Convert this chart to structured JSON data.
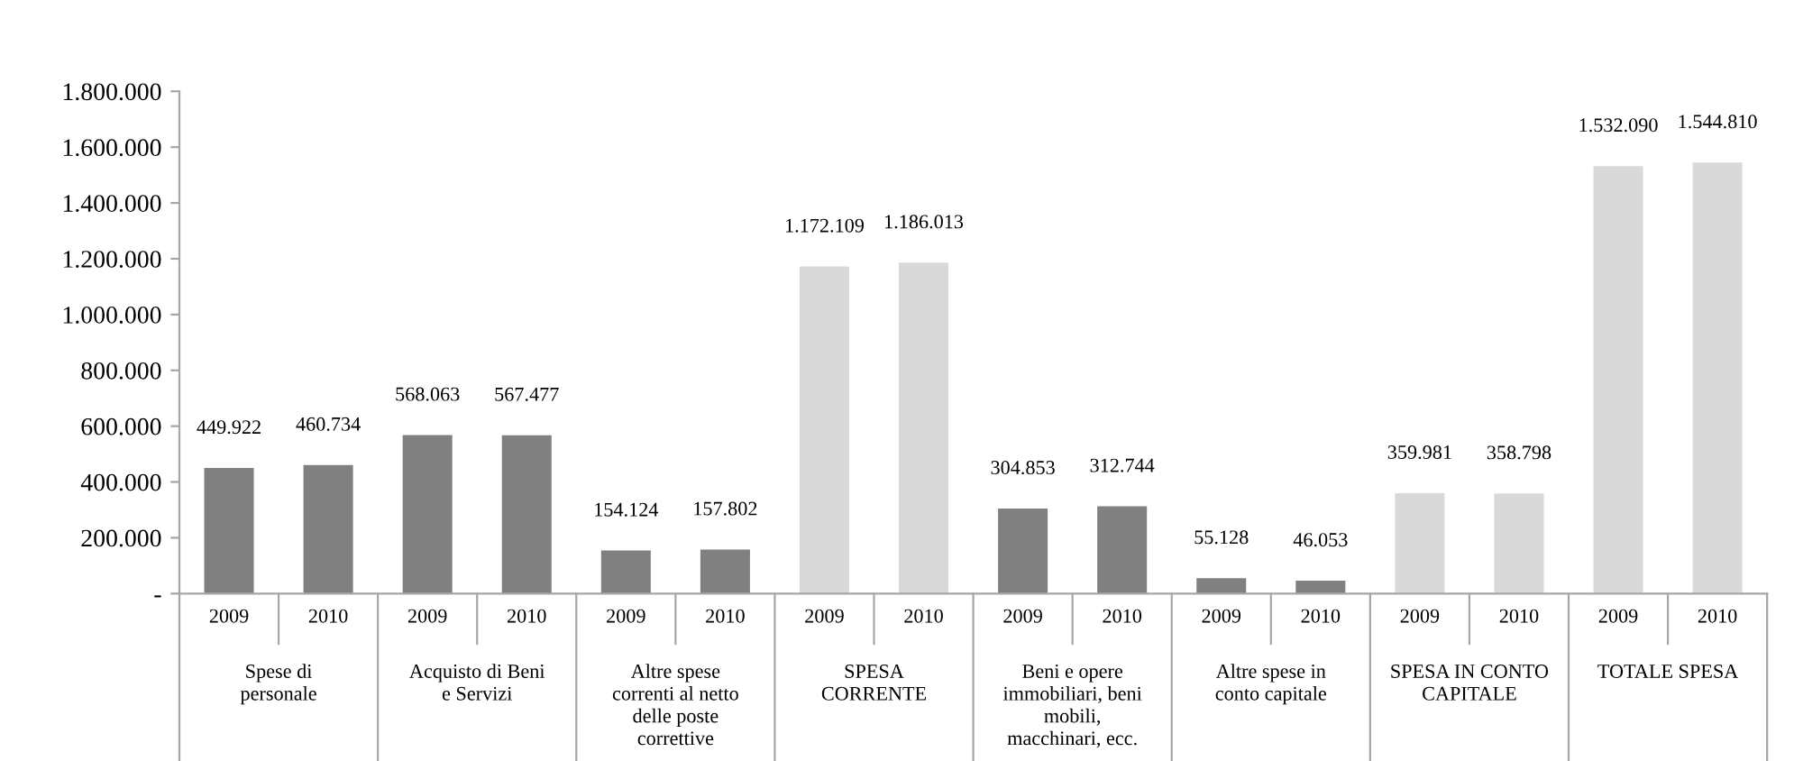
{
  "chart_data": {
    "type": "bar",
    "categories": [
      "2009",
      "2010",
      "2009",
      "2010",
      "2009",
      "2010",
      "2009",
      "2010",
      "2009",
      "2010",
      "2009",
      "2010",
      "2009",
      "2010",
      "2009",
      "2010"
    ],
    "values": [
      449922,
      460734,
      568063,
      567477,
      154124,
      157802,
      1172109,
      1186013,
      304853,
      312744,
      55128,
      46053,
      359981,
      358798,
      1532090,
      1544810
    ],
    "value_labels": [
      "449.922",
      "460.734",
      "568.063",
      "567.477",
      "154.124",
      "157.802",
      "1.172.109",
      "1.186.013",
      "304.853",
      "312.744",
      "55.128",
      "46.053",
      "359.981",
      "358.798",
      "1.532.090",
      "1.544.810"
    ],
    "colors": [
      "#808080",
      "#808080",
      "#808080",
      "#808080",
      "#808080",
      "#808080",
      "#d9d9d9",
      "#d9d9d9",
      "#808080",
      "#808080",
      "#808080",
      "#808080",
      "#d9d9d9",
      "#d9d9d9",
      "#d9d9d9",
      "#d9d9d9"
    ],
    "annotations": [
      "Spese di\npersonale",
      "Acquisto di Beni\ne Servizi",
      "Altre spese\ncorrenti al netto\ndelle poste\ncorrettive",
      "SPESA\nCORRENTE",
      "Beni e opere\nimmobiliari, beni\nmobili,\nmacchinari, ecc.",
      "Altre spese in\nconto capitale",
      "SPESA IN CONTO\nCAPITALE",
      "TOTALE SPESA"
    ],
    "ylim": [
      0,
      1800000
    ],
    "yticks": [
      {
        "value": 0,
        "label": "-"
      },
      {
        "value": 200000,
        "label": "200.000"
      },
      {
        "value": 400000,
        "label": "400.000"
      },
      {
        "value": 600000,
        "label": "600.000"
      },
      {
        "value": 800000,
        "label": "800.000"
      },
      {
        "value": 1000000,
        "label": "1.000.000"
      },
      {
        "value": 1200000,
        "label": "1.200.000"
      },
      {
        "value": 1400000,
        "label": "1.400.000"
      },
      {
        "value": 1600000,
        "label": "1.600.000"
      },
      {
        "value": 1800000,
        "label": "1.800.000"
      }
    ],
    "grid": false,
    "legend": false
  }
}
